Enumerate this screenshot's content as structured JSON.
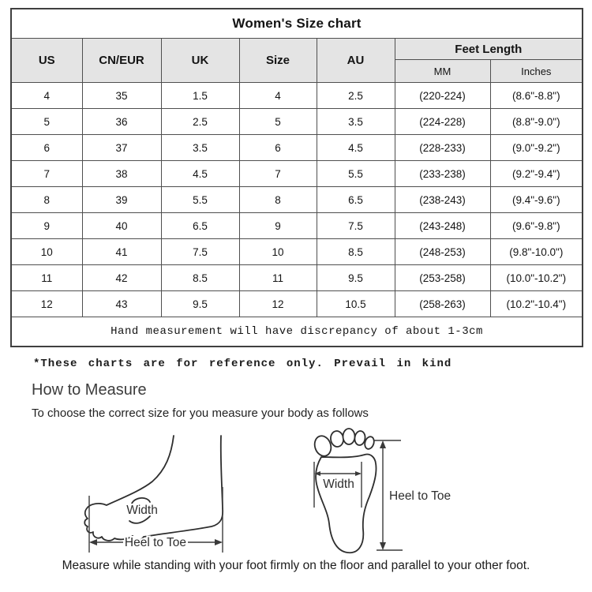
{
  "size_chart": {
    "title": "Women's Size chart",
    "columns": [
      "US",
      "CN/EUR",
      "UK",
      "Size",
      "AU"
    ],
    "feet_length": {
      "label": "Feet Length",
      "sub_columns": [
        "MM",
        "Inches"
      ]
    },
    "rows": [
      [
        "4",
        "35",
        "1.5",
        "4",
        "2.5",
        "(220-224)",
        "(8.6\"-8.8\")"
      ],
      [
        "5",
        "36",
        "2.5",
        "5",
        "3.5",
        "(224-228)",
        "(8.8\"-9.0\")"
      ],
      [
        "6",
        "37",
        "3.5",
        "6",
        "4.5",
        "(228-233)",
        "(9.0\"-9.2\")"
      ],
      [
        "7",
        "38",
        "4.5",
        "7",
        "5.5",
        "(233-238)",
        "(9.2\"-9.4\")"
      ],
      [
        "8",
        "39",
        "5.5",
        "8",
        "6.5",
        "(238-243)",
        "(9.4\"-9.6\")"
      ],
      [
        "9",
        "40",
        "6.5",
        "9",
        "7.5",
        "(243-248)",
        "(9.6\"-9.8\")"
      ],
      [
        "10",
        "41",
        "7.5",
        "10",
        "8.5",
        "(248-253)",
        "(9.8\"-10.0\")"
      ],
      [
        "11",
        "42",
        "8.5",
        "11",
        "9.5",
        "(253-258)",
        "(10.0\"-10.2\")"
      ],
      [
        "12",
        "43",
        "9.5",
        "12",
        "10.5",
        "(258-263)",
        "(10.2\"-10.4\")"
      ]
    ],
    "footer_note": "Hand measurement will have discrepancy of about 1-3cm"
  },
  "notes": {
    "reference_note": "*These charts are for reference only. Prevail in kind"
  },
  "how_to_measure": {
    "heading": "How to Measure",
    "subheading": "To choose the correct size for you measure your body as follows",
    "caption": "Measure while standing with your foot firmly on the floor and parallel to your other foot."
  },
  "diagram_labels": {
    "side_width": "Width",
    "side_heel_to_toe": "Heel to Toe",
    "sole_width": "Width",
    "sole_heel_to_toe": "Heel to Toe"
  },
  "colors": {
    "header_background": "#e4e4e4",
    "table_border": "#4f4f4f",
    "text": "#141414",
    "heading_text": "#3d3d3d",
    "sketch_stroke": "#2e2e2e"
  }
}
